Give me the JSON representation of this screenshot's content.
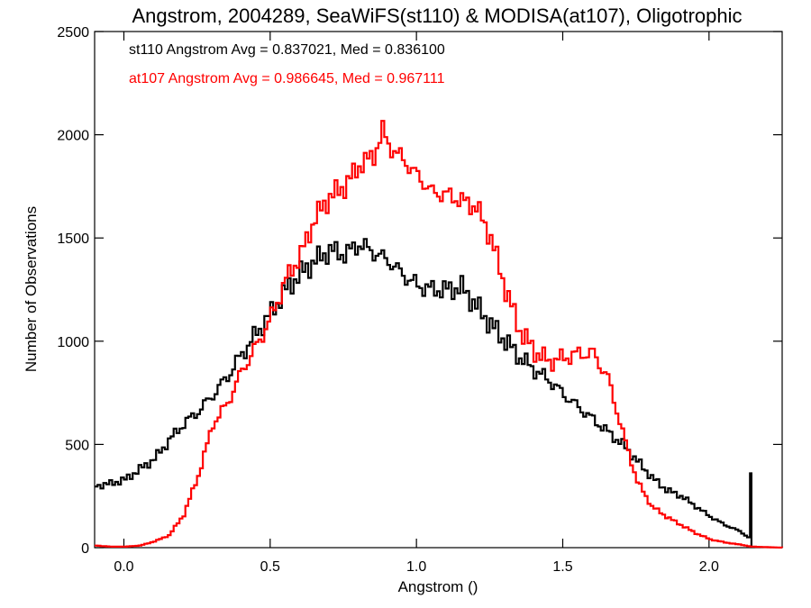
{
  "chart_data": {
    "type": "line",
    "title": "Angstrom, 2004289, SeaWiFS(st110) & MODISA(at107), Oligotrophic",
    "xlabel": "Angstrom ()",
    "ylabel": "Number of Observations",
    "xlim": [
      -0.1,
      2.25
    ],
    "ylim": [
      0,
      2500
    ],
    "x_ticks": [
      0.0,
      0.5,
      1.0,
      1.5,
      2.0
    ],
    "x_tick_labels": [
      "0.0",
      "0.5",
      "1.0",
      "1.5",
      "2.0"
    ],
    "y_ticks": [
      0,
      500,
      1000,
      1500,
      2000,
      2500
    ],
    "y_tick_labels": [
      "0",
      "500",
      "1000",
      "1500",
      "2000",
      "2500"
    ],
    "grid": false,
    "annotations": [
      {
        "text": "st110 Angstrom Avg = 0.837021, Med = 0.836100",
        "color": "#000000"
      },
      {
        "text": "at107 Angstrom Avg = 0.986645, Med = 0.967111",
        "color": "#ff0000"
      }
    ],
    "series": [
      {
        "color": "#000000",
        "x": [
          -0.1,
          -0.05,
          0.0,
          0.05,
          0.1,
          0.15,
          0.2,
          0.25,
          0.3,
          0.35,
          0.4,
          0.45,
          0.5,
          0.55,
          0.6,
          0.65,
          0.7,
          0.75,
          0.8,
          0.85,
          0.9,
          0.95,
          1.0,
          1.05,
          1.1,
          1.15,
          1.2,
          1.25,
          1.3,
          1.35,
          1.4,
          1.45,
          1.5,
          1.55,
          1.6,
          1.65,
          1.7,
          1.75,
          1.8,
          1.85,
          1.9,
          1.95,
          2.0,
          2.05,
          2.1,
          2.13,
          2.14,
          2.145
        ],
        "y": [
          300,
          310,
          330,
          380,
          430,
          520,
          600,
          660,
          740,
          830,
          940,
          1040,
          1140,
          1250,
          1330,
          1390,
          1440,
          1420,
          1470,
          1430,
          1390,
          1320,
          1270,
          1250,
          1250,
          1260,
          1170,
          1080,
          1000,
          920,
          860,
          810,
          740,
          680,
          620,
          560,
          500,
          420,
          340,
          280,
          250,
          200,
          150,
          110,
          80,
          50,
          350,
          0
        ]
      },
      {
        "color": "#ff0000",
        "x": [
          -0.1,
          -0.05,
          0.0,
          0.05,
          0.1,
          0.15,
          0.2,
          0.25,
          0.3,
          0.35,
          0.4,
          0.45,
          0.5,
          0.55,
          0.6,
          0.65,
          0.7,
          0.75,
          0.8,
          0.85,
          0.88,
          0.9,
          0.95,
          1.0,
          1.05,
          1.1,
          1.15,
          1.2,
          1.25,
          1.3,
          1.35,
          1.4,
          1.45,
          1.5,
          1.55,
          1.6,
          1.65,
          1.7,
          1.75,
          1.8,
          1.85,
          1.9,
          1.95,
          2.0,
          2.05,
          2.1,
          2.14,
          2.25
        ],
        "y": [
          10,
          5,
          5,
          10,
          30,
          60,
          160,
          350,
          600,
          700,
          860,
          980,
          1120,
          1300,
          1420,
          1600,
          1700,
          1750,
          1850,
          1900,
          2020,
          1950,
          1880,
          1800,
          1720,
          1710,
          1680,
          1650,
          1500,
          1250,
          1050,
          950,
          900,
          920,
          940,
          940,
          820,
          560,
          320,
          200,
          150,
          110,
          70,
          40,
          25,
          15,
          5,
          0
        ]
      }
    ]
  }
}
